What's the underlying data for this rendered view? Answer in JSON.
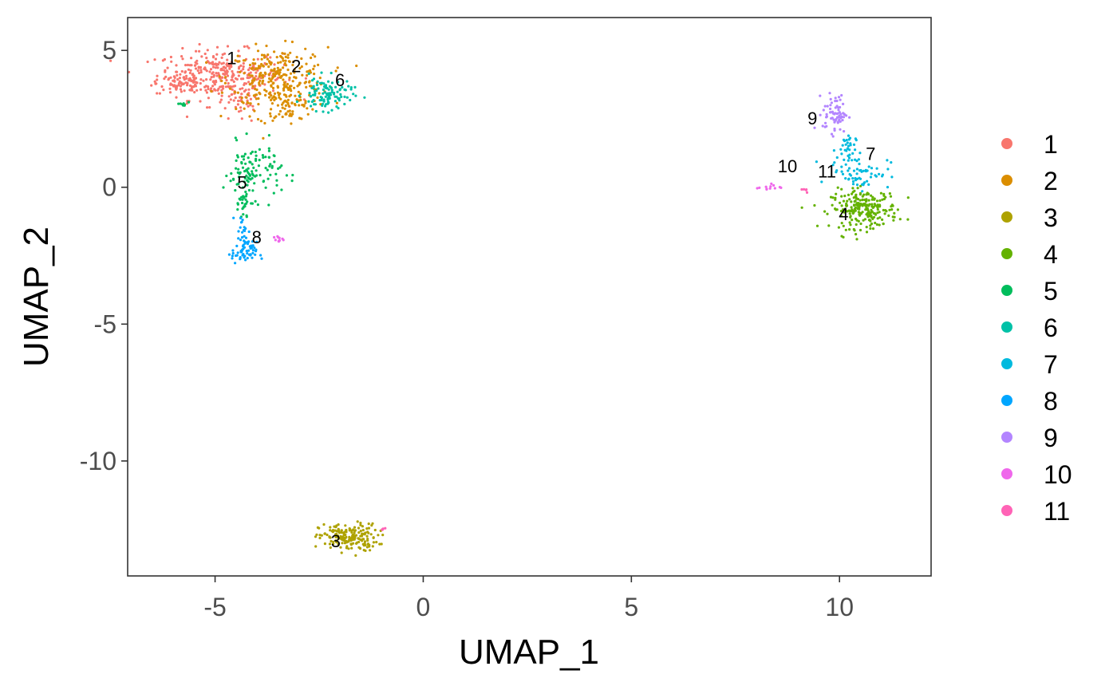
{
  "chart_data": {
    "type": "scatter",
    "xlabel": "UMAP_1",
    "ylabel": "UMAP_2",
    "xlim": [
      -7.1,
      12.2
    ],
    "ylim": [
      -14.2,
      6.2
    ],
    "xticks": [
      -5,
      0,
      5,
      10
    ],
    "yticks": [
      5,
      0,
      -5,
      -10
    ],
    "grid": false,
    "legend_position": "right",
    "clusters": [
      {
        "name": "1",
        "color": "#F8766D",
        "label": {
          "x": -4.6,
          "y": 4.5
        },
        "blobs": [
          {
            "cx": -4.9,
            "cy": 4.1,
            "sx": 0.75,
            "sy": 0.45,
            "n": 320
          },
          {
            "cx": -5.8,
            "cy": 3.8,
            "sx": 0.3,
            "sy": 0.2,
            "n": 50
          },
          {
            "cx": -4.4,
            "cy": 3.1,
            "sx": 0.3,
            "sy": 0.4,
            "n": 40
          }
        ]
      },
      {
        "name": "2",
        "color": "#DB8E00",
        "label": {
          "x": -3.05,
          "y": 4.2
        },
        "blobs": [
          {
            "cx": -3.5,
            "cy": 4.0,
            "sx": 0.6,
            "sy": 0.55,
            "n": 260
          },
          {
            "cx": -3.3,
            "cy": 3.0,
            "sx": 0.35,
            "sy": 0.35,
            "n": 70
          }
        ]
      },
      {
        "name": "3",
        "color": "#AEA200",
        "label": {
          "x": -2.1,
          "y": -13.15
        },
        "blobs": [
          {
            "cx": -1.8,
            "cy": -12.8,
            "sx": 0.35,
            "sy": 0.25,
            "n": 190
          }
        ]
      },
      {
        "name": "4",
        "color": "#64B200",
        "label": {
          "x": 10.1,
          "y": -1.2
        },
        "blobs": [
          {
            "cx": 10.6,
            "cy": -0.8,
            "sx": 0.4,
            "sy": 0.35,
            "n": 230
          }
        ]
      },
      {
        "name": "5",
        "color": "#00BD5C",
        "label": {
          "x": -4.35,
          "y": -0.05
        },
        "blobs": [
          {
            "cx": -4.1,
            "cy": 0.6,
            "sx": 0.35,
            "sy": 0.5,
            "n": 110
          },
          {
            "cx": -4.3,
            "cy": -0.6,
            "sx": 0.06,
            "sy": 0.35,
            "n": 30
          },
          {
            "cx": -5.8,
            "cy": 3.0,
            "sx": 0.1,
            "sy": 0.06,
            "n": 8
          }
        ]
      },
      {
        "name": "6",
        "color": "#00C1A7",
        "label": {
          "x": -2.0,
          "y": 3.7
        },
        "blobs": [
          {
            "cx": -2.3,
            "cy": 3.4,
            "sx": 0.3,
            "sy": 0.3,
            "n": 110
          }
        ]
      },
      {
        "name": "7",
        "color": "#00BADE",
        "label": {
          "x": 10.75,
          "y": 1.0
        },
        "blobs": [
          {
            "cx": 10.5,
            "cy": 0.55,
            "sx": 0.35,
            "sy": 0.3,
            "n": 60
          },
          {
            "cx": 10.15,
            "cy": 1.35,
            "sx": 0.12,
            "sy": 0.35,
            "n": 35
          }
        ]
      },
      {
        "name": "8",
        "color": "#00A6FF",
        "label": {
          "x": -4.0,
          "y": -2.05
        },
        "blobs": [
          {
            "cx": -4.3,
            "cy": -2.4,
            "sx": 0.15,
            "sy": 0.2,
            "n": 60
          },
          {
            "cx": -4.35,
            "cy": -1.6,
            "sx": 0.08,
            "sy": 0.3,
            "n": 20
          }
        ]
      },
      {
        "name": "9",
        "color": "#B385FF",
        "label": {
          "x": 9.35,
          "y": 2.3
        },
        "blobs": [
          {
            "cx": 9.9,
            "cy": 2.7,
            "sx": 0.15,
            "sy": 0.35,
            "n": 70
          }
        ]
      },
      {
        "name": "10",
        "color": "#EF67EB",
        "label": {
          "x": 8.75,
          "y": 0.55
        },
        "blobs": [
          {
            "cx": 8.3,
            "cy": 0.0,
            "sx": 0.15,
            "sy": 0.06,
            "n": 12
          },
          {
            "cx": -3.5,
            "cy": -1.9,
            "sx": 0.08,
            "sy": 0.08,
            "n": 10
          }
        ]
      },
      {
        "name": "11",
        "color": "#FF63B6",
        "label": {
          "x": 9.7,
          "y": 0.35
        },
        "blobs": [
          {
            "cx": 9.25,
            "cy": -0.1,
            "sx": 0.06,
            "sy": 0.04,
            "n": 5
          },
          {
            "cx": -0.9,
            "cy": -12.5,
            "sx": 0.05,
            "sy": 0.04,
            "n": 4
          }
        ]
      }
    ]
  }
}
